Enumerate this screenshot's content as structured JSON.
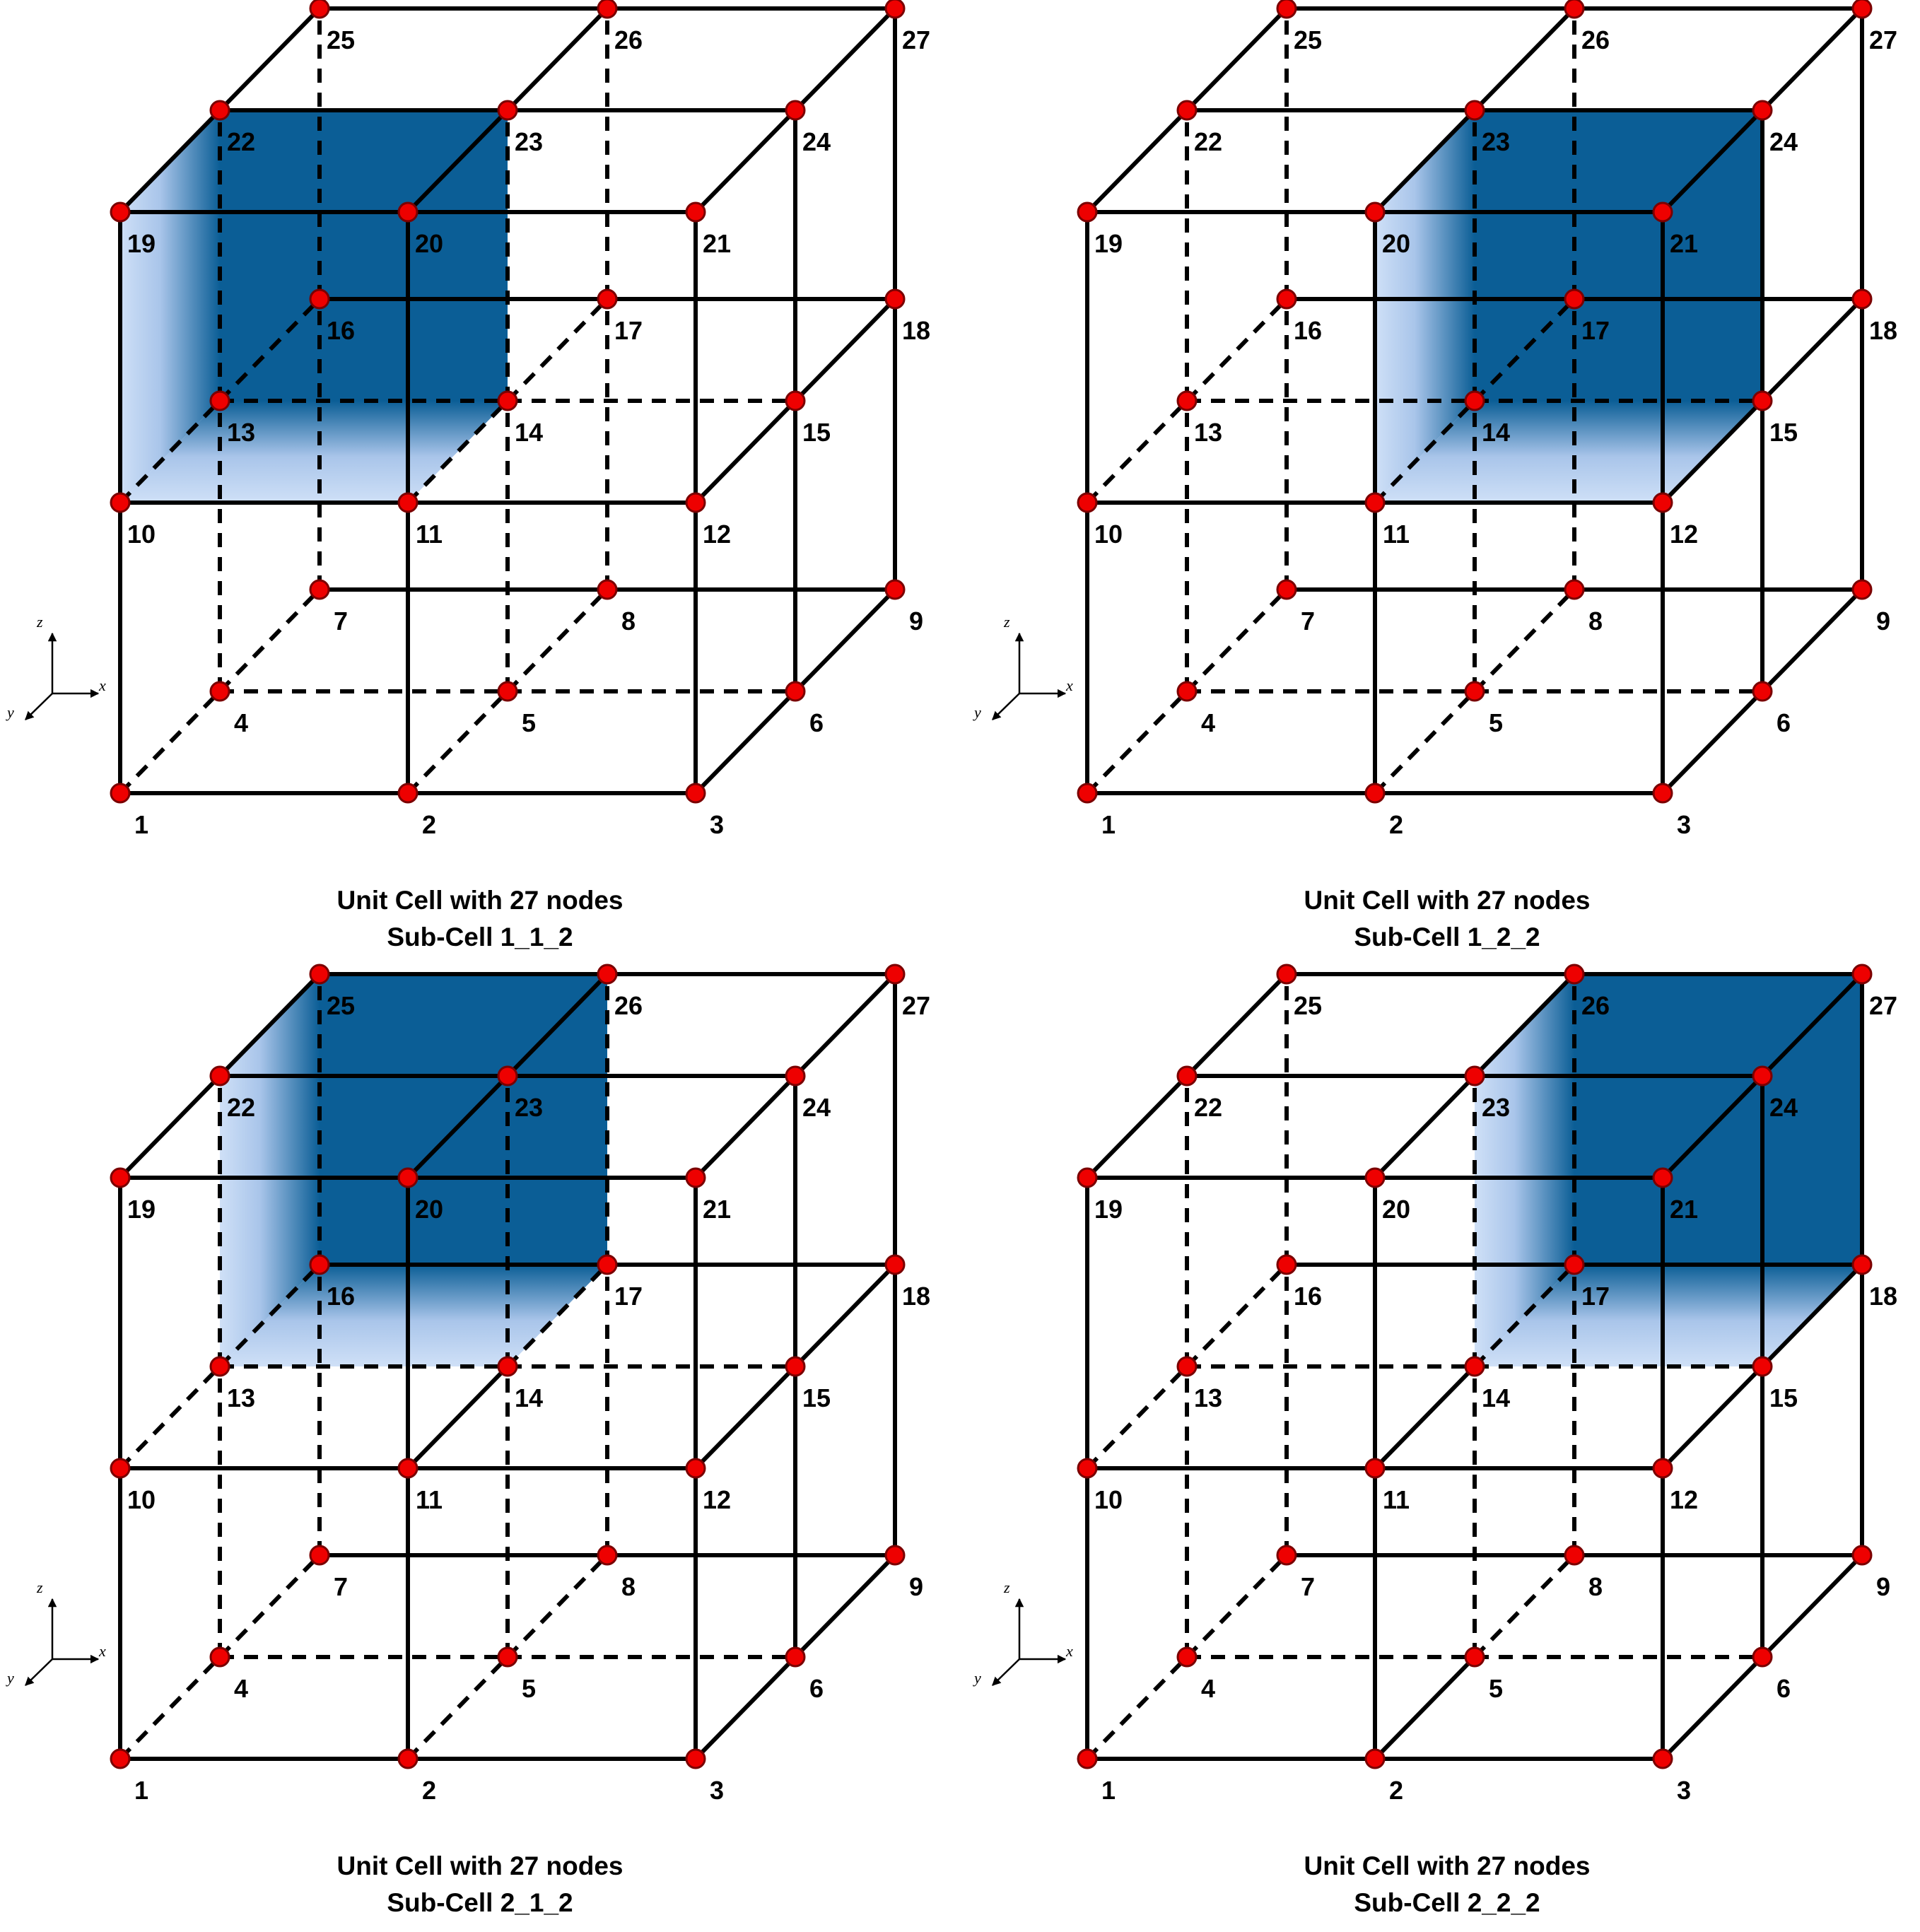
{
  "panels": [
    {
      "caption_line1": "Unit Cell with 27 nodes",
      "caption_line2": "Sub-Cell 1_1_2",
      "highlight": [
        0,
        0,
        1
      ],
      "solid": []
    },
    {
      "caption_line1": "Unit Cell with 27 nodes",
      "caption_line2": "Sub-Cell 1_2_2",
      "highlight": [
        1,
        0,
        1
      ],
      "solid": []
    },
    {
      "caption_line1": "Unit Cell with 27 nodes",
      "caption_line2": "Sub-Cell 2_1_2",
      "highlight": [
        0,
        1,
        1
      ],
      "solid": [
        [
          7,
          8
        ],
        [
          11,
          14
        ]
      ]
    },
    {
      "caption_line1": "Unit Cell with 27 nodes",
      "caption_line2": "Sub-Cell 2_2_2",
      "highlight": [
        1,
        1,
        1
      ],
      "solid": [
        [
          2,
          5
        ],
        [
          11,
          14
        ]
      ]
    }
  ],
  "node_labels": [
    "1",
    "2",
    "3",
    "4",
    "5",
    "6",
    "7",
    "8",
    "9",
    "10",
    "11",
    "12",
    "13",
    "14",
    "15",
    "16",
    "17",
    "18",
    "19",
    "20",
    "21",
    "22",
    "23",
    "24",
    "25",
    "26",
    "27"
  ],
  "axes": {
    "x": "x",
    "y": "y",
    "z": "z"
  },
  "colors": {
    "node_fill": "#ee0000",
    "node_stroke": "#7a0000",
    "edge": "#000000",
    "face_dark": "#0b5e96",
    "face_light": "#cfe0f7"
  }
}
